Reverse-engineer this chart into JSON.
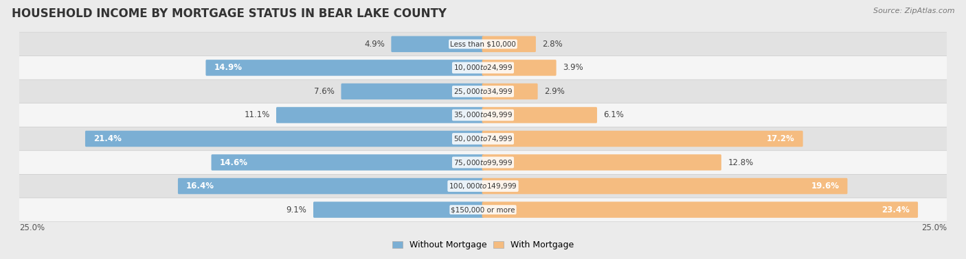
{
  "title": "HOUSEHOLD INCOME BY MORTGAGE STATUS IN BEAR LAKE COUNTY",
  "source": "Source: ZipAtlas.com",
  "categories": [
    "Less than $10,000",
    "$10,000 to $24,999",
    "$25,000 to $34,999",
    "$35,000 to $49,999",
    "$50,000 to $74,999",
    "$75,000 to $99,999",
    "$100,000 to $149,999",
    "$150,000 or more"
  ],
  "without_mortgage": [
    4.9,
    14.9,
    7.6,
    11.1,
    21.4,
    14.6,
    16.4,
    9.1
  ],
  "with_mortgage": [
    2.8,
    3.9,
    2.9,
    6.1,
    17.2,
    12.8,
    19.6,
    23.4
  ],
  "color_without": "#7BAFD4",
  "color_with": "#F5BC80",
  "bg_color": "#ebebeb",
  "row_bg_even": "#f5f5f5",
  "row_bg_odd": "#e2e2e2",
  "max_val": 25.0,
  "axis_label_left": "25.0%",
  "axis_label_right": "25.0%",
  "legend_without": "Without Mortgage",
  "legend_with": "With Mortgage",
  "title_fontsize": 12,
  "label_fontsize": 8.5,
  "bar_height": 0.58,
  "inside_label_threshold": 13.0
}
